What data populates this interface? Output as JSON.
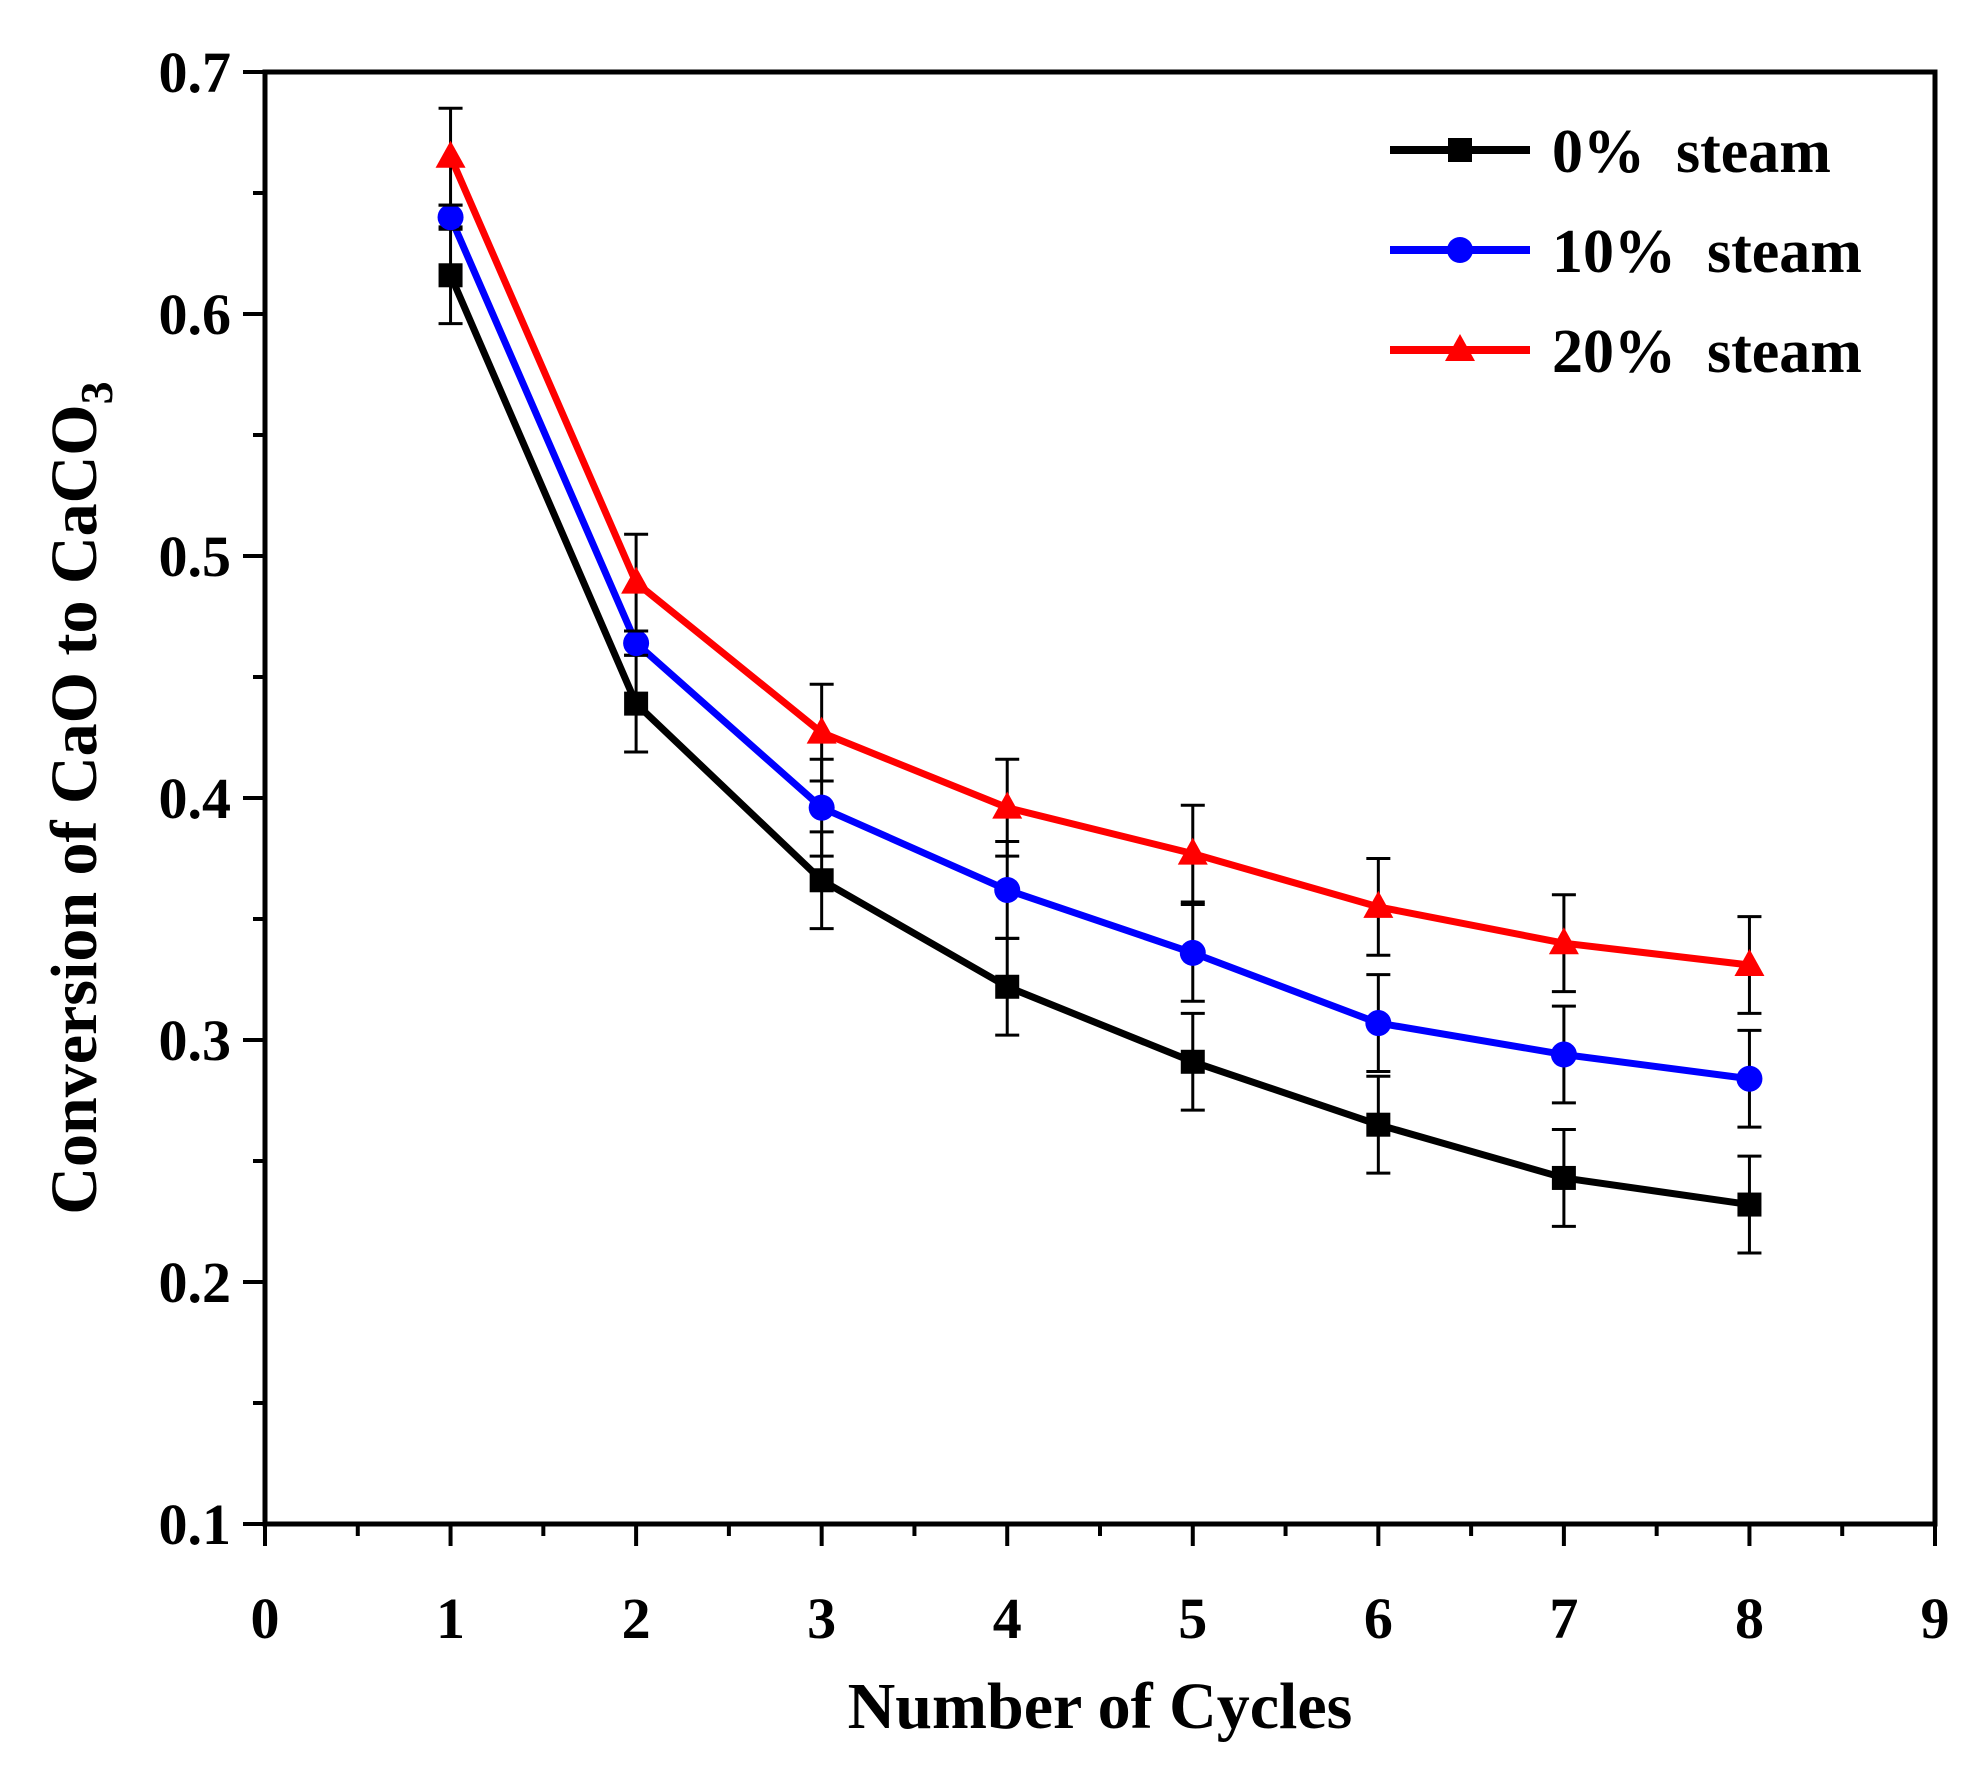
{
  "chart_data": {
    "type": "line",
    "title": "",
    "xlabel": "Number of Cycles",
    "ylabel": "Conversion of CaO to CaCO",
    "ylabel_subscript": "3",
    "xlim": [
      0,
      9
    ],
    "ylim": [
      0.1,
      0.7
    ],
    "xticks": [
      "0",
      "1",
      "2",
      "3",
      "4",
      "5",
      "6",
      "7",
      "8",
      "9"
    ],
    "yticks": [
      "0.1",
      "0.2",
      "0.3",
      "0.4",
      "0.5",
      "0.6",
      "0.7"
    ],
    "grid": false,
    "legend_position": "top-right",
    "x": [
      1,
      2,
      3,
      4,
      5,
      6,
      7,
      8
    ],
    "series": [
      {
        "name": "0%  steam",
        "color": "#000000",
        "marker": "square",
        "values": [
          0.616,
          0.439,
          0.366,
          0.322,
          0.291,
          0.265,
          0.243,
          0.232
        ],
        "errors": [
          0.02,
          0.02,
          0.02,
          0.02,
          0.02,
          0.02,
          0.02,
          0.02
        ]
      },
      {
        "name": "10%  steam",
        "color": "#0000ff",
        "marker": "circle",
        "values": [
          0.64,
          0.464,
          0.396,
          0.362,
          0.336,
          0.307,
          0.294,
          0.284
        ],
        "errors": [
          0.005,
          0.005,
          0.02,
          0.02,
          0.02,
          0.02,
          0.02,
          0.02
        ]
      },
      {
        "name": "20%  steam",
        "color": "#ff0000",
        "marker": "triangle",
        "values": [
          0.665,
          0.489,
          0.427,
          0.396,
          0.377,
          0.355,
          0.34,
          0.331
        ],
        "errors": [
          0.02,
          0.02,
          0.02,
          0.02,
          0.02,
          0.02,
          0.02,
          0.02
        ]
      }
    ]
  }
}
